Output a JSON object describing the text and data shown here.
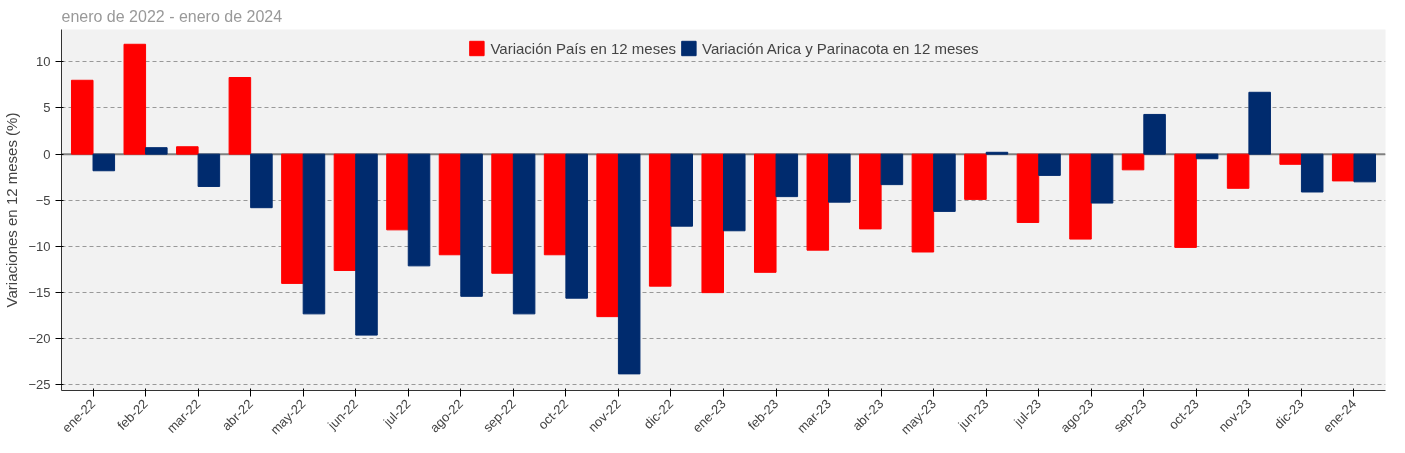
{
  "chart_data": {
    "type": "bar",
    "subtitle": "enero de 2022 - enero de 2024",
    "ylabel": "Variaciones en 12 meses (%)",
    "categories": [
      "ene-22",
      "feb-22",
      "mar-22",
      "abr-22",
      "may-22",
      "jun-22",
      "jul-22",
      "ago-22",
      "sep-22",
      "oct-22",
      "nov-22",
      "dic-22",
      "ene-23",
      "feb-23",
      "mar-23",
      "abr-23",
      "may-23",
      "jun-23",
      "jul-23",
      "ago-23",
      "sep-23",
      "oct-23",
      "nov-23",
      "dic-23",
      "ene-24"
    ],
    "series": [
      {
        "name": "Variación País en 12 meses",
        "color": "#ff0000",
        "values": [
          8.0,
          11.9,
          0.8,
          8.3,
          -14.0,
          -12.6,
          -8.2,
          -10.9,
          -12.9,
          -10.9,
          -17.6,
          -14.3,
          -15.0,
          -12.8,
          -10.4,
          -8.1,
          -10.6,
          -4.9,
          -7.4,
          -9.2,
          -1.7,
          -10.1,
          -3.7,
          -1.1,
          -2.9
        ]
      },
      {
        "name": "Variación Arica y Parinacota en 12 meses",
        "color": "#002b6e",
        "values": [
          -1.8,
          0.7,
          -3.5,
          -5.8,
          -17.3,
          -19.6,
          -12.1,
          -15.4,
          -17.3,
          -15.6,
          -23.8,
          -7.8,
          -8.3,
          -4.6,
          -5.2,
          -3.3,
          -6.2,
          0.2,
          -2.3,
          -5.3,
          4.3,
          -0.5,
          6.7,
          -4.1,
          -3.0
        ]
      }
    ],
    "ylim": [
      -25.6,
      13.5
    ],
    "yticks": [
      -25,
      -20,
      -15,
      -10,
      -5,
      0,
      5,
      10
    ],
    "grid": "y",
    "legend": "top",
    "ref_lines": [
      {
        "axis": "y",
        "value": 0,
        "color": "#808080"
      }
    ]
  }
}
